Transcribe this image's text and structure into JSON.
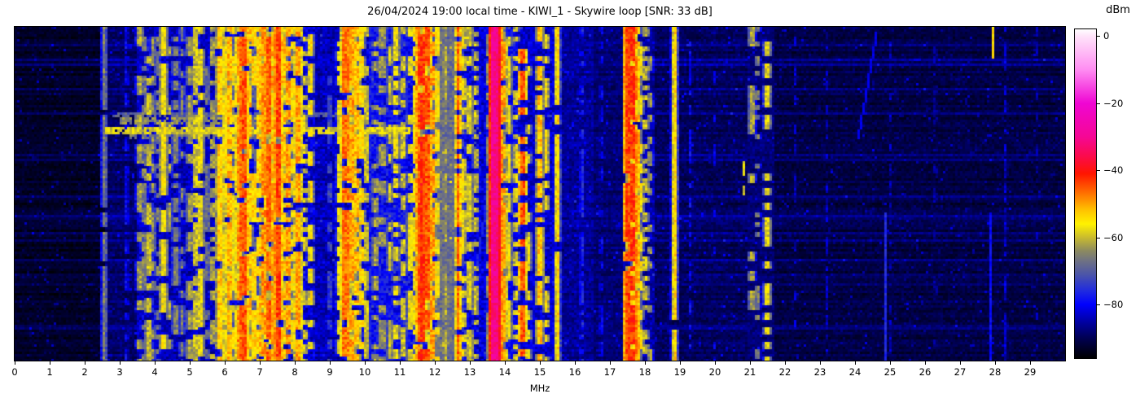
{
  "title": "26/04/2024 19:00 local time - KIWI_1 - Skywire loop [SNR: 33 dB]",
  "title_parts": {
    "datetime": "26/04/2024 19:00 local time",
    "station": "KIWI_1",
    "antenna": "Skywire loop",
    "snr": "33 dB"
  },
  "x_axis": {
    "label": "MHz",
    "range": [
      0,
      30
    ],
    "ticks": [
      0,
      1,
      2,
      3,
      4,
      5,
      6,
      7,
      8,
      9,
      10,
      11,
      12,
      13,
      14,
      15,
      16,
      17,
      18,
      19,
      20,
      21,
      22,
      23,
      24,
      25,
      26,
      27,
      28,
      29
    ]
  },
  "y_axis": {
    "label": "",
    "note": "time axis of waterfall, no tick labels shown"
  },
  "colorbar": {
    "label": "dBm",
    "vmax": 2,
    "vmin": -96,
    "ticks": [
      {
        "v": 0,
        "label": "0"
      },
      {
        "v": -20,
        "label": "−20"
      },
      {
        "v": -40,
        "label": "−40"
      },
      {
        "v": -60,
        "label": "−60"
      },
      {
        "v": -80,
        "label": "−80"
      }
    ]
  },
  "chart_data": {
    "type": "heatmap",
    "title": "26/04/2024 19:00 local time - KIWI_1 - Skywire loop [SNR: 33 dB]",
    "xlabel": "MHz",
    "x_range_mhz": [
      0,
      30
    ],
    "value_unit": "dBm",
    "value_range": [
      -96,
      2
    ],
    "description": "HF radio spectrum waterfall 0-30 MHz. Black/dark-blue noise floor, vertical stripes are broadcast and ham signals, horizontal yellow streaks are wideband noise bursts near 27-32% of the time span.",
    "colormap_stops": [
      [
        2,
        "#ffffff"
      ],
      [
        0,
        "#ffe4fa"
      ],
      [
        -10,
        "#ff8df2"
      ],
      [
        -20,
        "#ef06d3"
      ],
      [
        -30,
        "#f50795"
      ],
      [
        -36,
        "#fb0b49"
      ],
      [
        -41,
        "#ff1500"
      ],
      [
        -47,
        "#ff7300"
      ],
      [
        -52,
        "#ffc400"
      ],
      [
        -56,
        "#fff200"
      ],
      [
        -60,
        "#c9bb2e"
      ],
      [
        -64,
        "#8c8a60"
      ],
      [
        -67,
        "#6f7283"
      ],
      [
        -71,
        "#4c55a8"
      ],
      [
        -76,
        "#1f2ae0"
      ],
      [
        -80,
        "#0000fe"
      ],
      [
        -85,
        "#0000a6"
      ],
      [
        -90,
        "#000052"
      ],
      [
        -96,
        "#000000"
      ]
    ],
    "noise_floor_fields": [
      "f0_mhz",
      "f1_mhz",
      "floor_dbm",
      "noise_sigma_db"
    ],
    "noise_floor_regions": [
      [
        0,
        2.55,
        -93,
        1.5
      ],
      [
        2.55,
        3.5,
        -89,
        2
      ],
      [
        3.5,
        5.75,
        -84,
        3
      ],
      [
        5.75,
        8.55,
        -82,
        4
      ],
      [
        8.55,
        9.35,
        -84,
        3
      ],
      [
        9.35,
        10.1,
        -82,
        4
      ],
      [
        10.1,
        12.05,
        -79,
        4.5
      ],
      [
        12.05,
        12.6,
        -68,
        3
      ],
      [
        12.6,
        13.45,
        -82,
        4
      ],
      [
        13.45,
        14.4,
        -80,
        4
      ],
      [
        14.4,
        15.65,
        -83,
        3.5
      ],
      [
        15.65,
        16.55,
        -86,
        2.5
      ],
      [
        16.55,
        17.4,
        -88,
        2
      ],
      [
        17.4,
        18.3,
        -85,
        3
      ],
      [
        18.3,
        20.9,
        -89.5,
        2
      ],
      [
        20.9,
        21.7,
        -88,
        2
      ],
      [
        21.7,
        30,
        -91,
        1.8
      ]
    ],
    "signal_lines_fields": [
      "freq_mhz",
      "halfwidth_mhz",
      "peak_dbm",
      "duty"
    ],
    "signal_lines": [
      [
        2.56,
        0.04,
        -66,
        0.9
      ],
      [
        3.19,
        0.04,
        -80,
        0.8
      ],
      [
        3.58,
        0.05,
        -62,
        0.5
      ],
      [
        3.7,
        0.05,
        -66,
        0.6
      ],
      [
        3.82,
        0.05,
        -60,
        0.6
      ],
      [
        3.95,
        0.04,
        -64,
        0.5
      ],
      [
        4.08,
        0.04,
        -66,
        0.5
      ],
      [
        4.25,
        0.06,
        -57,
        0.75
      ],
      [
        4.42,
        0.04,
        -62,
        0.5
      ],
      [
        4.6,
        0.06,
        -66,
        0.6
      ],
      [
        4.78,
        0.04,
        -66,
        0.5
      ],
      [
        5.0,
        0.05,
        -62,
        0.5
      ],
      [
        5.17,
        0.04,
        -60,
        0.85
      ],
      [
        5.32,
        0.05,
        -58,
        0.7
      ],
      [
        5.5,
        0.04,
        -68,
        0.5
      ],
      [
        5.65,
        0.04,
        -63,
        0.5
      ],
      [
        5.87,
        0.06,
        -53,
        0.8
      ],
      [
        6.02,
        0.05,
        -56,
        0.65
      ],
      [
        6.12,
        0.05,
        -51,
        0.75
      ],
      [
        6.25,
        0.05,
        -56,
        0.6
      ],
      [
        6.4,
        0.05,
        -49,
        0.8
      ],
      [
        6.53,
        0.07,
        -45,
        0.85
      ],
      [
        6.68,
        0.05,
        -52,
        0.7
      ],
      [
        6.82,
        0.05,
        -54,
        0.65
      ],
      [
        7.0,
        0.05,
        -52,
        0.7
      ],
      [
        7.12,
        0.05,
        -49,
        0.75
      ],
      [
        7.25,
        0.06,
        -46,
        0.85
      ],
      [
        7.38,
        0.05,
        -50,
        0.7
      ],
      [
        7.52,
        0.06,
        -44,
        0.85
      ],
      [
        7.66,
        0.05,
        -52,
        0.65
      ],
      [
        7.8,
        0.05,
        -50,
        0.7
      ],
      [
        7.95,
        0.04,
        -56,
        0.6
      ],
      [
        8.1,
        0.06,
        -50,
        0.75
      ],
      [
        8.28,
        0.04,
        -58,
        0.5
      ],
      [
        8.46,
        0.04,
        -55,
        0.6
      ],
      [
        9.0,
        0.03,
        -72,
        0.5
      ],
      [
        9.28,
        0.04,
        -58,
        0.7
      ],
      [
        9.45,
        0.07,
        -47,
        0.85
      ],
      [
        9.62,
        0.06,
        -50,
        0.8
      ],
      [
        9.76,
        0.06,
        -52,
        0.75
      ],
      [
        9.9,
        0.05,
        -55,
        0.7
      ],
      [
        10.05,
        0.04,
        -60,
        0.6
      ],
      [
        10.3,
        0.05,
        -62,
        0.5
      ],
      [
        10.5,
        0.07,
        -64,
        0.55
      ],
      [
        10.72,
        0.04,
        -60,
        0.5
      ],
      [
        10.9,
        0.05,
        -58,
        0.55
      ],
      [
        11.1,
        0.04,
        -60,
        0.5
      ],
      [
        11.3,
        0.05,
        -58,
        0.55
      ],
      [
        11.5,
        0.06,
        -50,
        0.8
      ],
      [
        11.62,
        0.06,
        -42,
        0.9
      ],
      [
        11.78,
        0.06,
        -45,
        0.85
      ],
      [
        11.92,
        0.05,
        -50,
        0.75
      ],
      [
        12.07,
        0.05,
        -56,
        0.7
      ],
      [
        12.3,
        0.04,
        -62,
        0.7
      ],
      [
        12.67,
        0.04,
        -46,
        0.85
      ],
      [
        12.82,
        0.04,
        -57,
        0.6
      ],
      [
        13.0,
        0.05,
        -58,
        0.6
      ],
      [
        13.17,
        0.04,
        -60,
        0.5
      ],
      [
        13.57,
        0.04,
        -56,
        0.65
      ],
      [
        13.72,
        0.08,
        -31,
        0.97
      ],
      [
        13.84,
        0.05,
        -42,
        0.85
      ],
      [
        13.97,
        0.05,
        -50,
        0.7
      ],
      [
        14.12,
        0.04,
        -57,
        0.55
      ],
      [
        14.32,
        0.04,
        -58,
        0.4
      ],
      [
        14.5,
        0.06,
        -45,
        0.45
      ],
      [
        14.68,
        0.04,
        -58,
        0.4
      ],
      [
        15.0,
        0.05,
        -52,
        0.6
      ],
      [
        15.18,
        0.04,
        -56,
        0.5
      ],
      [
        15.5,
        0.035,
        -54,
        0.9
      ],
      [
        16.2,
        0.035,
        -77,
        0.6
      ],
      [
        16.75,
        0.03,
        -81,
        0.5
      ],
      [
        17.5,
        0.06,
        -44,
        0.9
      ],
      [
        17.63,
        0.06,
        -43,
        0.9
      ],
      [
        17.76,
        0.05,
        -48,
        0.8
      ],
      [
        17.88,
        0.04,
        -56,
        0.6
      ],
      [
        18.02,
        0.05,
        -60,
        0.5
      ],
      [
        18.15,
        0.04,
        -64,
        0.4
      ],
      [
        18.85,
        0.035,
        -54,
        0.95
      ],
      [
        19.3,
        0.035,
        -80,
        0.5
      ],
      [
        20.0,
        0.03,
        -82,
        0.4
      ],
      [
        21.05,
        0.05,
        -62,
        0.35
      ],
      [
        21.22,
        0.04,
        -66,
        0.3
      ],
      [
        21.5,
        0.05,
        -58,
        0.5
      ],
      [
        22.3,
        0.03,
        -84,
        0.4
      ],
      [
        23.2,
        0.03,
        -84,
        0.4
      ],
      [
        25.0,
        0.03,
        -85,
        0.4
      ],
      [
        26.3,
        0.03,
        -86,
        0.3
      ],
      [
        28.3,
        0.035,
        -83,
        0.6
      ],
      [
        29.2,
        0.03,
        -86,
        0.3
      ]
    ],
    "burst_streaks_fields": [
      "row0_frac",
      "row1_frac",
      "f0_mhz",
      "f1_mhz",
      "level_dbm",
      "patch_prob"
    ],
    "burst_streaks": [
      [
        0.25,
        0.268,
        2.8,
        9.6,
        -70,
        0.75
      ],
      [
        0.268,
        0.287,
        3.0,
        8.2,
        -64,
        0.7
      ],
      [
        0.297,
        0.32,
        2.56,
        11.3,
        -59,
        0.85
      ],
      [
        0.32,
        0.332,
        3.3,
        7.2,
        -67,
        0.6
      ],
      [
        0.297,
        0.32,
        11.3,
        13.3,
        -70,
        0.6
      ]
    ],
    "events_fields": [
      "freq_mhz",
      "halfwidth_mhz",
      "row0_frac",
      "row1_frac",
      "level_dbm"
    ],
    "events": [
      [
        27.95,
        0.05,
        0.0,
        0.09,
        -54
      ],
      [
        20.8,
        0.04,
        0.4,
        0.44,
        -57
      ],
      [
        20.8,
        0.03,
        0.47,
        0.5,
        -60
      ],
      [
        24.85,
        0.04,
        0.55,
        1.0,
        -76
      ],
      [
        27.9,
        0.03,
        0.55,
        1.0,
        -79
      ]
    ],
    "diagonal_traces_fields": [
      "f_start_mhz",
      "row0_frac",
      "f_end_mhz",
      "row1_frac",
      "level_dbm"
    ],
    "diagonal_traces": [
      [
        24.62,
        0.02,
        24.1,
        0.33,
        -81
      ],
      [
        13.62,
        0.42,
        13.12,
        0.78,
        -77
      ]
    ]
  }
}
